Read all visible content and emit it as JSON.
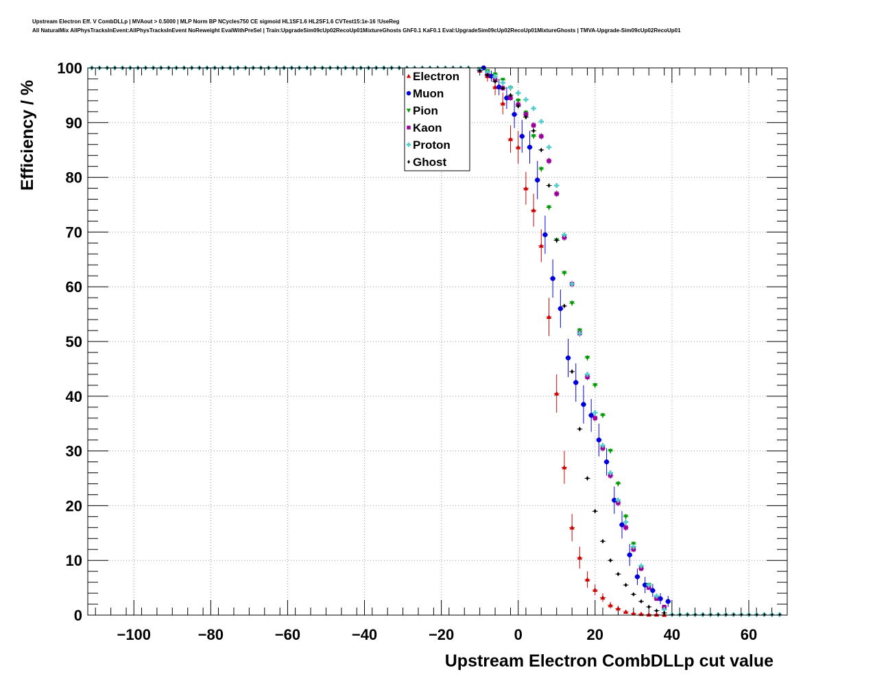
{
  "titles": {
    "line1": "Upstream Electron Eff. V CombDLLp | MVAout > 0.5000 | MLP Norm BP NCycles750 CE sigmoid HL1SF1.6 HL2SF1.6 CVTest15:1e-16 !UseReg",
    "line2": "All NaturalMix AllPhysTracksInEvent:AllPhysTracksInEvent NoReweight EvalWithPreSel | Train:UpgradeSim09cUp02RecoUp01MixtureGhosts GhF0.1 KaF0.1 Eval:UpgradeSim09cUp02RecoUp01MixtureGhosts | TMVA-Upgrade-Sim09cUp02RecoUp01"
  },
  "chart_data": {
    "type": "scatter",
    "xlabel": "Upstream Electron CombDLLp cut value",
    "ylabel": "Efficiency / %",
    "xlim": [
      -112,
      70
    ],
    "ylim": [
      0,
      100
    ],
    "x_ticks": [
      -100,
      -80,
      -60,
      -40,
      -20,
      0,
      20,
      40,
      60
    ],
    "x_tick_labels": [
      "−100",
      "−80",
      "−60",
      "−40",
      "−20",
      "0",
      "20",
      "40",
      "60"
    ],
    "y_ticks": [
      0,
      10,
      20,
      30,
      40,
      50,
      60,
      70,
      80,
      90,
      100
    ],
    "y_tick_labels": [
      "0",
      "10",
      "20",
      "30",
      "40",
      "50",
      "60",
      "70",
      "80",
      "90",
      "100"
    ],
    "grid": true,
    "legend_position": "top-center",
    "plateau": {
      "x_start": -111,
      "x_end": -12,
      "step": 2,
      "value": 100
    },
    "series": [
      {
        "name": "Electron",
        "color": "#cc0000",
        "marker": "triangle-up",
        "x": [
          -10,
          -8,
          -6,
          -4,
          -2,
          0,
          2,
          4,
          6,
          8,
          10,
          12,
          14,
          16,
          18,
          20,
          22,
          24,
          26,
          28,
          30,
          32,
          34,
          36,
          38
        ],
        "y": [
          99.5,
          98.5,
          96.5,
          93.5,
          87,
          85.5,
          78,
          74,
          67.5,
          54.5,
          40.5,
          27,
          16,
          10.5,
          6.5,
          4.6,
          3.2,
          1.8,
          1.2,
          0.6,
          0.3,
          0.2,
          0.1,
          0.1,
          0.05
        ],
        "err": [
          0.5,
          1,
          1.5,
          2,
          2.5,
          3,
          3,
          3,
          3,
          3.5,
          3.5,
          3,
          2.5,
          2,
          1.5,
          1,
          0.8,
          0.6,
          0.5,
          0.3,
          0.2,
          0.1,
          0.1,
          0.1,
          0.05
        ]
      },
      {
        "name": "Muon",
        "color": "#0000dd",
        "marker": "circle",
        "x": [
          -9,
          -7,
          -5,
          -3,
          -1,
          1,
          3,
          5,
          7,
          9,
          11,
          13,
          15,
          17,
          19,
          21,
          23,
          25,
          27,
          29,
          31,
          33,
          35,
          37,
          39
        ],
        "y": [
          100,
          98.5,
          96.5,
          94.5,
          91.5,
          87.5,
          85.5,
          79.5,
          69.5,
          61.5,
          56,
          47,
          42.5,
          38.5,
          36.5,
          32,
          28,
          21,
          16.5,
          11,
          7,
          5.5,
          4.5,
          3,
          2.5
        ],
        "err": [
          0,
          1,
          1.5,
          2,
          2.5,
          3,
          3,
          3.5,
          3.5,
          3.5,
          3.5,
          3.5,
          3.5,
          3.5,
          3,
          3,
          2.5,
          2.5,
          2.5,
          2,
          1.5,
          1.5,
          1.2,
          1,
          1
        ]
      },
      {
        "name": "Pion",
        "color": "#009900",
        "marker": "triangle-down",
        "x": [
          -10,
          -8,
          -6,
          -4,
          -2,
          0,
          2,
          4,
          6,
          8,
          10,
          12,
          14,
          16,
          18,
          20,
          22,
          24,
          26,
          28,
          30,
          32,
          34,
          36,
          38
        ],
        "y": [
          99.8,
          99.4,
          98.8,
          97.8,
          96.3,
          94,
          91.8,
          87.5,
          81.5,
          74.5,
          68.5,
          62.5,
          57,
          52,
          47,
          42,
          36.5,
          30,
          24,
          18,
          13,
          8.5,
          5.5,
          3,
          1
        ],
        "err": [
          0.1,
          0.2,
          0.3,
          0.4,
          0.5,
          0.5,
          0.5,
          0.5,
          0.5,
          0.5,
          0.5,
          0.5,
          0.5,
          0.5,
          0.5,
          0.5,
          0.5,
          0.5,
          0.5,
          0.5,
          0.5,
          0.4,
          0.3,
          0.3,
          0.2
        ]
      },
      {
        "name": "Kaon",
        "color": "#990099",
        "marker": "square",
        "x": [
          -10,
          -8,
          -6,
          -4,
          -2,
          0,
          2,
          4,
          6,
          8,
          10,
          12,
          14,
          16,
          18,
          20,
          22,
          24,
          26,
          28,
          30,
          32,
          34,
          36,
          38
        ],
        "y": [
          99.6,
          98.8,
          97.8,
          96.3,
          94.5,
          93.3,
          91.5,
          89.5,
          87.5,
          83,
          77,
          69,
          60.5,
          51.5,
          43.5,
          36,
          30.5,
          25.5,
          20.5,
          16,
          12,
          8.5,
          5,
          3,
          1.5
        ],
        "err": [
          0.2,
          0.3,
          0.4,
          0.5,
          0.5,
          0.6,
          0.6,
          0.6,
          0.6,
          0.6,
          0.6,
          0.6,
          0.6,
          0.6,
          0.6,
          0.6,
          0.6,
          0.6,
          0.6,
          0.6,
          0.5,
          0.5,
          0.4,
          0.3,
          0.3
        ]
      },
      {
        "name": "Proton",
        "color": "#55cccc",
        "marker": "cross",
        "x": [
          -10,
          -8,
          -6,
          -4,
          -2,
          0,
          2,
          4,
          6,
          8,
          10,
          12,
          14,
          16,
          18,
          20,
          22,
          24,
          26,
          28,
          30,
          32,
          34,
          36,
          38
        ],
        "y": [
          99.7,
          99.2,
          98.4,
          97.3,
          96.4,
          95.4,
          94.2,
          92.6,
          90.2,
          85.5,
          78.5,
          69.5,
          60.5,
          51.5,
          44,
          37,
          31,
          26,
          21,
          17,
          12.5,
          9,
          5.5,
          3.5,
          1
        ],
        "err": [
          0.2,
          0.3,
          0.3,
          0.4,
          0.4,
          0.4,
          0.4,
          0.4,
          0.4,
          0.4,
          0.4,
          0.4,
          0.4,
          0.4,
          0.4,
          0.4,
          0.4,
          0.4,
          0.4,
          0.4,
          0.4,
          0.4,
          0.3,
          0.3,
          0.2
        ]
      },
      {
        "name": "Ghost",
        "color": "#000000",
        "marker": "diamond",
        "x": [
          -10,
          -8,
          -6,
          -4,
          -2,
          0,
          2,
          4,
          6,
          8,
          10,
          12,
          14,
          16,
          18,
          20,
          22,
          24,
          26,
          28,
          30,
          32,
          34,
          36,
          38
        ],
        "y": [
          99.5,
          98.7,
          97.5,
          96.3,
          95,
          93,
          91,
          88.5,
          85,
          78.5,
          68.5,
          56.5,
          44.5,
          34,
          25,
          19,
          13.5,
          10,
          7.5,
          5.5,
          3.8,
          2.5,
          1.5,
          0.8,
          0.4
        ],
        "err": [
          0.2,
          0.3,
          0.3,
          0.4,
          0.4,
          0.4,
          0.4,
          0.4,
          0.4,
          0.4,
          0.4,
          0.4,
          0.4,
          0.4,
          0.4,
          0.4,
          0.4,
          0.3,
          0.3,
          0.3,
          0.2,
          0.2,
          0.2,
          0.1,
          0.1
        ]
      }
    ],
    "tail": {
      "x_start": 40,
      "x_end": 69,
      "step": 2,
      "value": 0.1
    }
  }
}
